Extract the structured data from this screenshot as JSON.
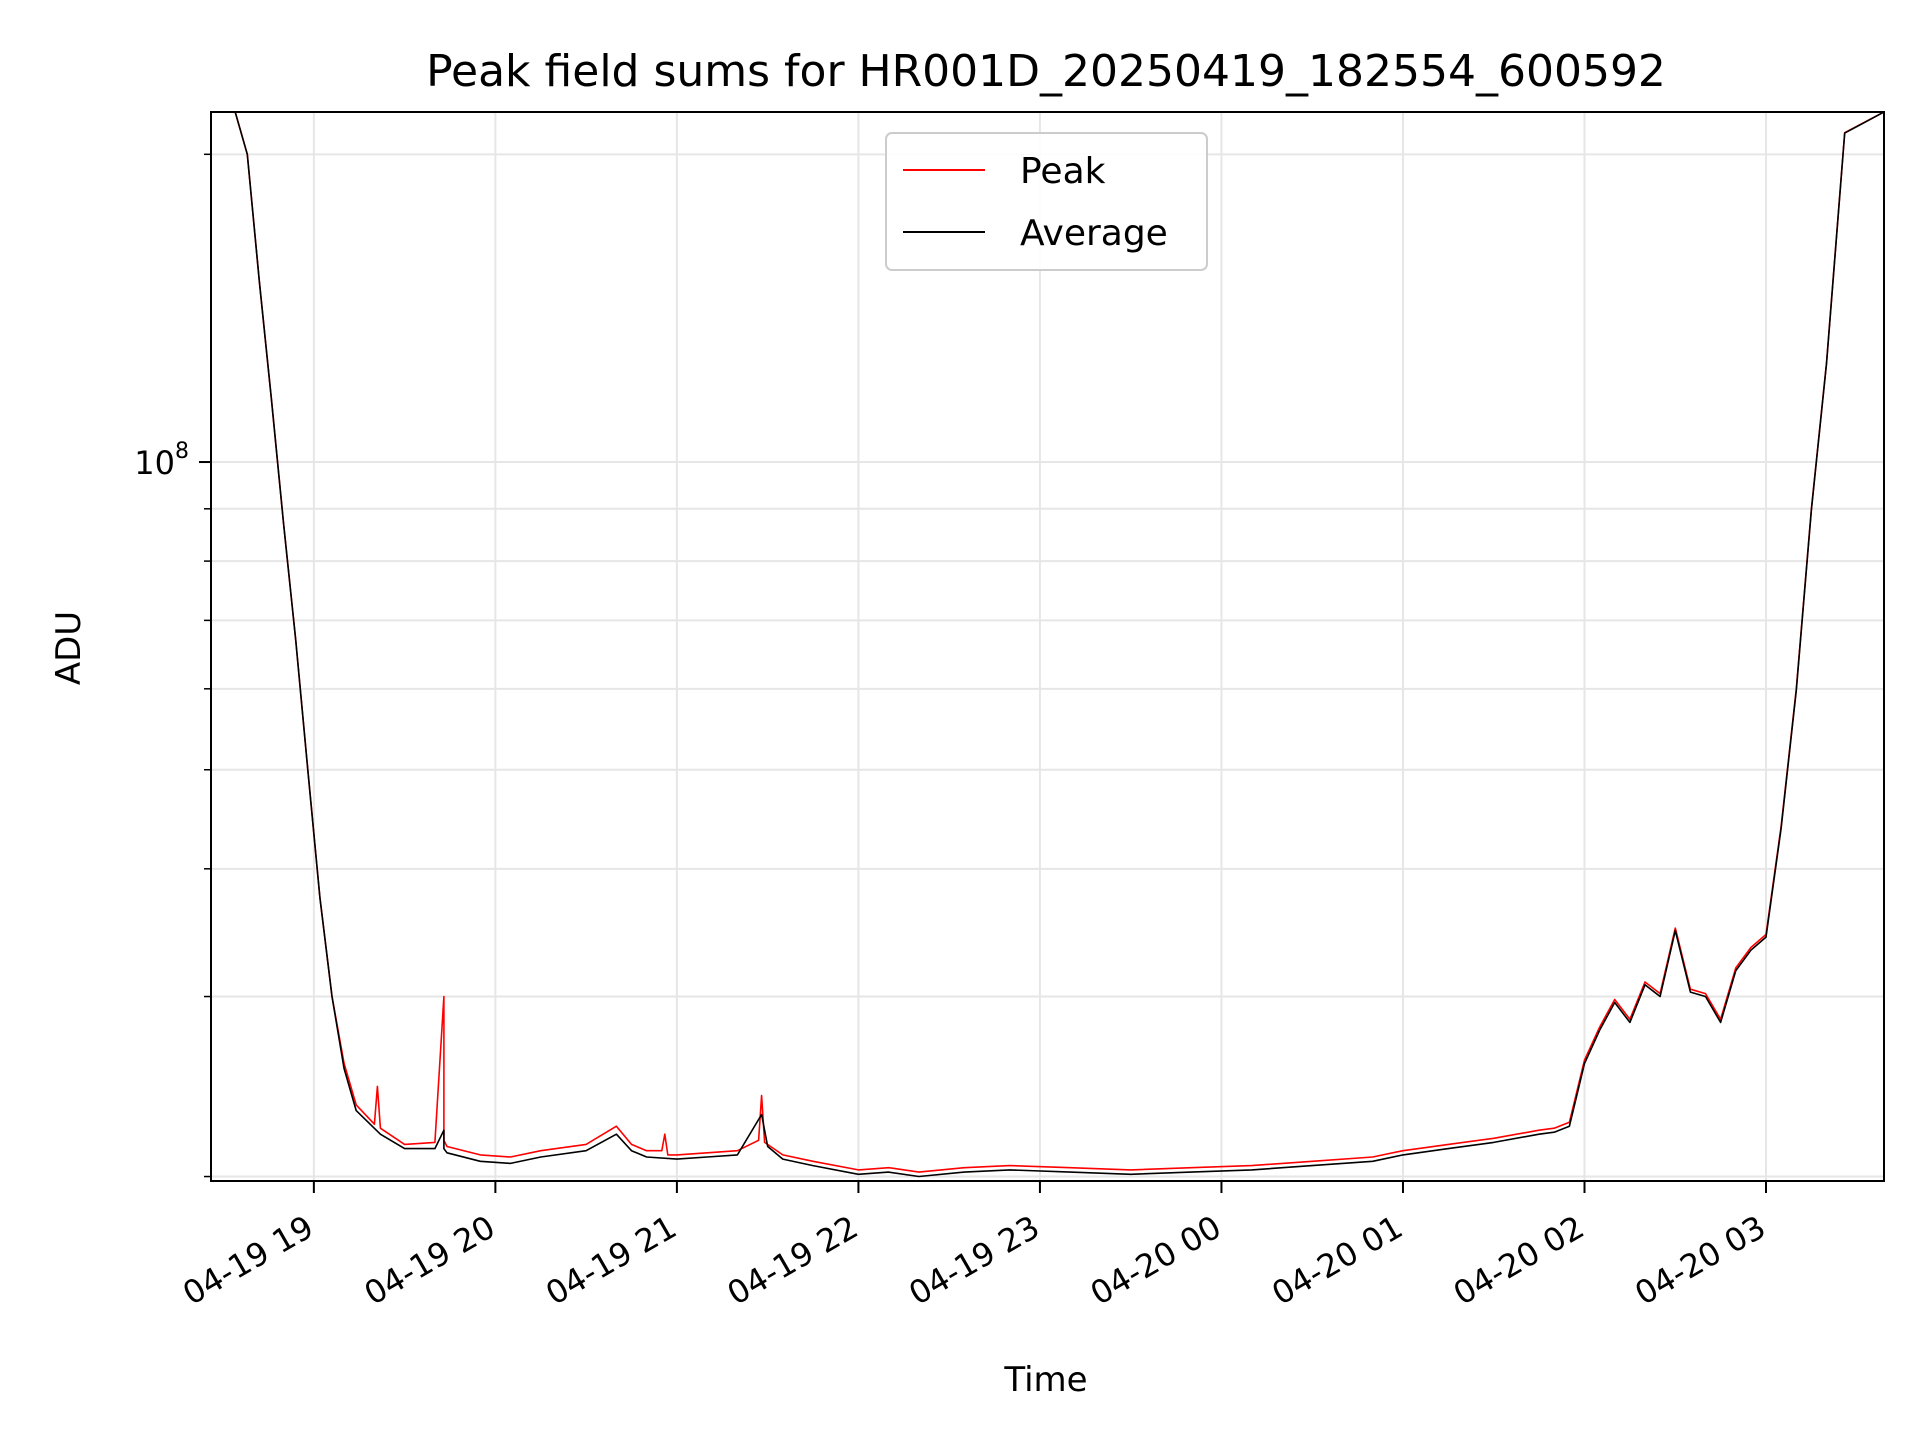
{
  "chart_data": {
    "type": "line",
    "title": "Peak field sums for HR001D_20250419_182554_600592",
    "xlabel": "Time",
    "ylabel": "ADU",
    "yscale": "log",
    "ylim": [
      19800000,
      220000000
    ],
    "xlim": [
      "2025-04-19 18:26",
      "2025-04-20 03:39"
    ],
    "grid": true,
    "legend_position": "top-center",
    "x_tick_labels": [
      "04-19 19",
      "04-19 20",
      "04-19 21",
      "04-19 22",
      "04-19 23",
      "04-20 00",
      "04-20 01",
      "04-20 02",
      "04-20 03"
    ],
    "x_ticks": [
      "2025-04-19 19:00",
      "2025-04-19 20:00",
      "2025-04-19 21:00",
      "2025-04-19 22:00",
      "2025-04-19 23:00",
      "2025-04-20 00:00",
      "2025-04-20 01:00",
      "2025-04-20 02:00",
      "2025-04-20 03:00"
    ],
    "y_tick_labels": [
      {
        "base": "10",
        "exp": "8"
      }
    ],
    "y_major_ticks": [
      100000000
    ],
    "y_minor_ticks": [
      20000000,
      30000000,
      40000000,
      50000000,
      60000000,
      70000000,
      80000000,
      90000000,
      200000000
    ],
    "series": [
      {
        "name": "Peak",
        "color": "#ff0000",
        "x": [
          "2025-04-19 18:26",
          "2025-04-19 18:30",
          "2025-04-19 18:34",
          "2025-04-19 18:38",
          "2025-04-19 18:42",
          "2025-04-19 18:46",
          "2025-04-19 18:50",
          "2025-04-19 18:54",
          "2025-04-19 18:58",
          "2025-04-19 19:02",
          "2025-04-19 19:06",
          "2025-04-19 19:10",
          "2025-04-19 19:14",
          "2025-04-19 19:20",
          "2025-04-19 19:21",
          "2025-04-19 19:22",
          "2025-04-19 19:30",
          "2025-04-19 19:40",
          "2025-04-19 19:43",
          "2025-04-19 19:43",
          "2025-04-19 19:44",
          "2025-04-19 19:55",
          "2025-04-19 20:05",
          "2025-04-19 20:15",
          "2025-04-19 20:30",
          "2025-04-19 20:40",
          "2025-04-19 20:45",
          "2025-04-19 20:50",
          "2025-04-19 20:55",
          "2025-04-19 20:56",
          "2025-04-19 20:57",
          "2025-04-19 21:00",
          "2025-04-19 21:10",
          "2025-04-19 21:20",
          "2025-04-19 21:27",
          "2025-04-19 21:28",
          "2025-04-19 21:29",
          "2025-04-19 21:35",
          "2025-04-19 21:45",
          "2025-04-19 22:00",
          "2025-04-19 22:10",
          "2025-04-19 22:20",
          "2025-04-19 22:35",
          "2025-04-19 22:50",
          "2025-04-19 23:10",
          "2025-04-19 23:30",
          "2025-04-19 23:50",
          "2025-04-20 00:10",
          "2025-04-20 00:30",
          "2025-04-20 00:50",
          "2025-04-20 01:00",
          "2025-04-20 01:15",
          "2025-04-20 01:30",
          "2025-04-20 01:45",
          "2025-04-20 01:50",
          "2025-04-20 01:55",
          "2025-04-20 02:00",
          "2025-04-20 02:05",
          "2025-04-20 02:10",
          "2025-04-20 02:15",
          "2025-04-20 02:20",
          "2025-04-20 02:25",
          "2025-04-20 02:30",
          "2025-04-20 02:35",
          "2025-04-20 02:40",
          "2025-04-20 02:45",
          "2025-04-20 02:50",
          "2025-04-20 02:55",
          "2025-04-20 03:00",
          "2025-04-20 03:05",
          "2025-04-20 03:10",
          "2025-04-20 03:15",
          "2025-04-20 03:20",
          "2025-04-20 03:26",
          "2025-04-20 03:39"
        ],
        "values": [
          220000000,
          220000000,
          220000000,
          200000000,
          150000000,
          115000000,
          87000000,
          67000000,
          50000000,
          37500000,
          30000000,
          25800000,
          23500000,
          22500000,
          24500000,
          22300000,
          21500000,
          21600000,
          30000000,
          21700000,
          21400000,
          21000000,
          20900000,
          21200000,
          21500000,
          22400000,
          21500000,
          21200000,
          21200000,
          22000000,
          21000000,
          21000000,
          21100000,
          21200000,
          21700000,
          24000000,
          21600000,
          21000000,
          20700000,
          20300000,
          20400000,
          20200000,
          20400000,
          20500000,
          20400000,
          20300000,
          20400000,
          20500000,
          20700000,
          20900000,
          21200000,
          21500000,
          21800000,
          22200000,
          22300000,
          22600000,
          26000000,
          28000000,
          29800000,
          28500000,
          31000000,
          30200000,
          35000000,
          30500000,
          30200000,
          28500000,
          32000000,
          33500000,
          34500000,
          44000000,
          60000000,
          90000000,
          125000000,
          210000000,
          220000000
        ]
      },
      {
        "name": "Average",
        "color": "#000000",
        "x": [
          "2025-04-19 18:26",
          "2025-04-19 18:30",
          "2025-04-19 18:34",
          "2025-04-19 18:38",
          "2025-04-19 18:42",
          "2025-04-19 18:46",
          "2025-04-19 18:50",
          "2025-04-19 18:54",
          "2025-04-19 18:58",
          "2025-04-19 19:02",
          "2025-04-19 19:06",
          "2025-04-19 19:10",
          "2025-04-19 19:14",
          "2025-04-19 19:22",
          "2025-04-19 19:30",
          "2025-04-19 19:40",
          "2025-04-19 19:43",
          "2025-04-19 19:43",
          "2025-04-19 19:44",
          "2025-04-19 19:55",
          "2025-04-19 20:05",
          "2025-04-19 20:15",
          "2025-04-19 20:30",
          "2025-04-19 20:40",
          "2025-04-19 20:45",
          "2025-04-19 20:50",
          "2025-04-19 21:00",
          "2025-04-19 21:10",
          "2025-04-19 21:20",
          "2025-04-19 21:28",
          "2025-04-19 21:30",
          "2025-04-19 21:35",
          "2025-04-19 21:45",
          "2025-04-19 22:00",
          "2025-04-19 22:10",
          "2025-04-19 22:20",
          "2025-04-19 22:35",
          "2025-04-19 22:50",
          "2025-04-19 23:10",
          "2025-04-19 23:30",
          "2025-04-19 23:50",
          "2025-04-20 00:10",
          "2025-04-20 00:30",
          "2025-04-20 00:50",
          "2025-04-20 01:00",
          "2025-04-20 01:15",
          "2025-04-20 01:30",
          "2025-04-20 01:45",
          "2025-04-20 01:50",
          "2025-04-20 01:55",
          "2025-04-20 02:00",
          "2025-04-20 02:05",
          "2025-04-20 02:10",
          "2025-04-20 02:15",
          "2025-04-20 02:20",
          "2025-04-20 02:25",
          "2025-04-20 02:30",
          "2025-04-20 02:35",
          "2025-04-20 02:40",
          "2025-04-20 02:45",
          "2025-04-20 02:50",
          "2025-04-20 02:55",
          "2025-04-20 03:00",
          "2025-04-20 03:05",
          "2025-04-20 03:10",
          "2025-04-20 03:15",
          "2025-04-20 03:20",
          "2025-04-20 03:26",
          "2025-04-20 03:39"
        ],
        "values": [
          220000000,
          220000000,
          220000000,
          200000000,
          150000000,
          115000000,
          87000000,
          67000000,
          50000000,
          37500000,
          30000000,
          25500000,
          23200000,
          22000000,
          21300000,
          21300000,
          22200000,
          21300000,
          21100000,
          20700000,
          20600000,
          20900000,
          21200000,
          22000000,
          21200000,
          20900000,
          20800000,
          20900000,
          21000000,
          23000000,
          21400000,
          20800000,
          20500000,
          20100000,
          20200000,
          20000000,
          20200000,
          20300000,
          20200000,
          20100000,
          20200000,
          20300000,
          20500000,
          20700000,
          21000000,
          21300000,
          21600000,
          22000000,
          22100000,
          22400000,
          25800000,
          27800000,
          29600000,
          28300000,
          30800000,
          30000000,
          34800000,
          30300000,
          30000000,
          28300000,
          31800000,
          33300000,
          34300000,
          43800000,
          59800000,
          89800000,
          124800000,
          209800000,
          220000000
        ]
      }
    ]
  }
}
